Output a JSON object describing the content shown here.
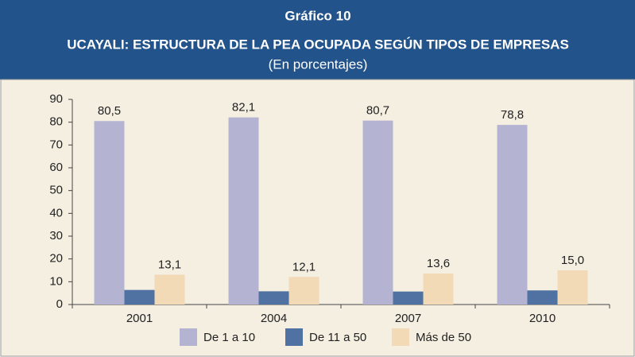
{
  "chart_data": {
    "type": "bar",
    "title": "Gráfico 10",
    "subtitle": "UCAYALI: ESTRUCTURA DE LA PEA OCUPADA SEGÚN TIPOS DE EMPRESAS",
    "note": "(En porcentajes)",
    "categories": [
      "2001",
      "2004",
      "2007",
      "2010"
    ],
    "series": [
      {
        "name": "De 1 a 10",
        "color": "#b4b4d2",
        "values": [
          80.5,
          82.1,
          80.7,
          78.8
        ],
        "value_labels": [
          "80,5",
          "82,1",
          "80,7",
          "78,8"
        ]
      },
      {
        "name": "De 11 a 50",
        "color": "#5072a3",
        "values": [
          6.4,
          5.8,
          5.7,
          6.2
        ]
      },
      {
        "name": "Más de 50",
        "color": "#f2dab6",
        "values": [
          13.1,
          12.1,
          13.6,
          15.0
        ],
        "value_labels": [
          "13,1",
          "12,1",
          "13,6",
          "15,0"
        ]
      }
    ],
    "ylim": [
      0,
      90
    ],
    "yticks": [
      0,
      10,
      20,
      30,
      40,
      50,
      60,
      70,
      80,
      90
    ],
    "grid": false,
    "legend": "bottom"
  }
}
